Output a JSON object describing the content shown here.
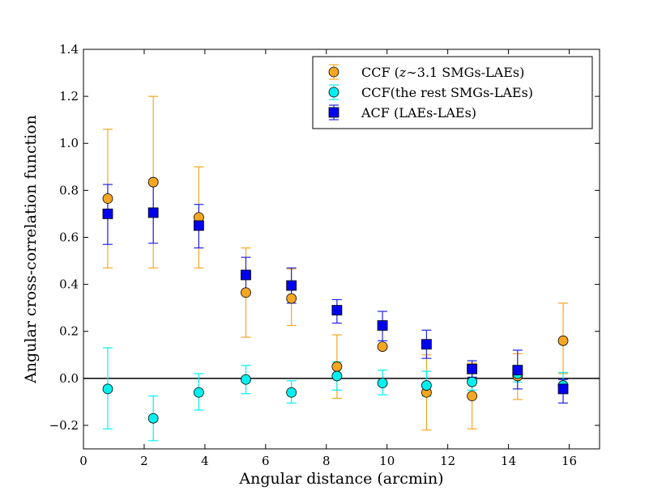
{
  "chart_data": {
    "type": "scatter",
    "title": "",
    "xlabel": "Angular distance (arcmin)",
    "ylabel": "Angular cross-correlation function",
    "xlim": [
      0,
      17
    ],
    "ylim": [
      -0.3,
      1.4
    ],
    "xticks": [
      "0",
      "2",
      "4",
      "6",
      "8",
      "10",
      "12",
      "14",
      "16"
    ],
    "yticks": [
      "−0.2",
      "0.0",
      "0.2",
      "0.4",
      "0.6",
      "0.8",
      "1.0",
      "1.2",
      "1.4"
    ],
    "xtick_values": [
      0,
      2,
      4,
      6,
      8,
      10,
      12,
      14,
      16
    ],
    "ytick_values": [
      -0.2,
      0.0,
      0.2,
      0.4,
      0.6,
      0.8,
      1.0,
      1.2,
      1.4
    ],
    "reference_line_y": 0.0,
    "legend_position": "top-right",
    "series": [
      {
        "name": "CCF (z~3.1 SMGs-LAEs)",
        "legend_prefix": "CCF (",
        "legend_math": "z",
        "legend_suffix": "∼3.1 SMGs-LAEs)",
        "marker": "circle",
        "color": "#f5a623",
        "x": [
          0.8,
          2.3,
          3.8,
          5.35,
          6.85,
          8.35,
          9.85,
          11.3,
          12.8,
          14.3,
          15.8
        ],
        "y": [
          0.765,
          0.835,
          0.685,
          0.365,
          0.34,
          0.05,
          0.135,
          -0.06,
          -0.075,
          0.01,
          0.16
        ],
        "err_low": [
          0.47,
          0.47,
          0.47,
          0.175,
          0.225,
          -0.085,
          0.13,
          -0.22,
          -0.215,
          -0.09,
          0.02
        ],
        "err_high": [
          1.06,
          1.2,
          0.9,
          0.555,
          0.465,
          0.185,
          0.135,
          0.1,
          0.065,
          0.105,
          0.32
        ]
      },
      {
        "name": "CCF(the rest SMGs-LAEs)",
        "legend_prefix": "CCF(the rest SMGs-LAEs)",
        "legend_math": "",
        "legend_suffix": "",
        "marker": "circle",
        "color": "#00f0f0",
        "x": [
          0.8,
          2.3,
          3.8,
          5.35,
          6.85,
          8.35,
          9.85,
          11.3,
          12.8,
          14.3,
          15.8
        ],
        "y": [
          -0.045,
          -0.17,
          -0.06,
          -0.005,
          -0.06,
          0.01,
          -0.02,
          -0.03,
          -0.015,
          0.02,
          -0.03
        ],
        "err_low": [
          -0.215,
          -0.265,
          -0.135,
          -0.065,
          -0.105,
          -0.05,
          -0.07,
          -0.075,
          -0.05,
          -0.015,
          -0.065
        ],
        "err_high": [
          0.13,
          -0.075,
          0.02,
          0.055,
          -0.01,
          0.07,
          0.035,
          0.03,
          0.02,
          0.055,
          0.025
        ]
      },
      {
        "name": "ACF (LAEs-LAEs)",
        "legend_prefix": "ACF (LAEs-LAEs)",
        "legend_math": "",
        "legend_suffix": "",
        "marker": "square",
        "color": "#0000ee",
        "x": [
          0.8,
          2.3,
          3.8,
          5.35,
          6.85,
          8.35,
          9.85,
          11.3,
          12.8,
          14.3,
          15.8
        ],
        "y": [
          0.7,
          0.705,
          0.65,
          0.44,
          0.395,
          0.29,
          0.225,
          0.145,
          0.04,
          0.035,
          -0.045
        ],
        "err_low": [
          0.57,
          0.575,
          0.555,
          0.365,
          0.32,
          0.235,
          0.16,
          0.085,
          0.005,
          -0.045,
          -0.105
        ],
        "err_high": [
          0.825,
          0.83,
          0.74,
          0.515,
          0.47,
          0.335,
          0.285,
          0.205,
          0.075,
          0.12,
          -0.005
        ]
      }
    ]
  }
}
